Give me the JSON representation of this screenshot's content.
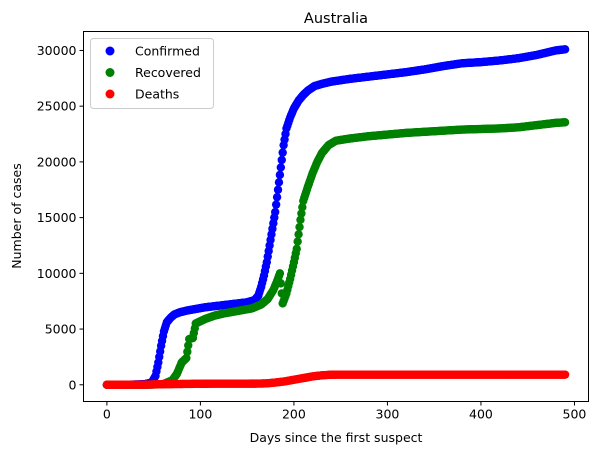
{
  "chart_data": {
    "type": "scatter",
    "title": "Australia",
    "xlabel": "Days since the first suspect",
    "ylabel": "Number of cases",
    "xlim": [
      -25,
      515
    ],
    "ylim": [
      -1500,
      31700
    ],
    "x_ticks": [
      0,
      100,
      200,
      300,
      400,
      500
    ],
    "y_ticks": [
      0,
      5000,
      10000,
      15000,
      20000,
      25000,
      30000
    ],
    "grid": false,
    "legend_position": "top-left",
    "series": [
      {
        "name": "Confirmed",
        "color": "#0000ff",
        "points": [
          [
            0,
            0
          ],
          [
            20,
            0
          ],
          [
            40,
            50
          ],
          [
            48,
            200
          ],
          [
            52,
            800
          ],
          [
            55,
            2000
          ],
          [
            58,
            3500
          ],
          [
            61,
            4800
          ],
          [
            64,
            5600
          ],
          [
            68,
            6000
          ],
          [
            72,
            6300
          ],
          [
            78,
            6500
          ],
          [
            85,
            6650
          ],
          [
            95,
            6800
          ],
          [
            105,
            6950
          ],
          [
            120,
            7100
          ],
          [
            135,
            7250
          ],
          [
            150,
            7400
          ],
          [
            158,
            7600
          ],
          [
            162,
            8000
          ],
          [
            165,
            8800
          ],
          [
            168,
            9800
          ],
          [
            171,
            11000
          ],
          [
            174,
            12500
          ],
          [
            177,
            14000
          ],
          [
            180,
            15500
          ],
          [
            183,
            17500
          ],
          [
            186,
            19500
          ],
          [
            189,
            21500
          ],
          [
            192,
            23000
          ],
          [
            196,
            24000
          ],
          [
            200,
            24800
          ],
          [
            205,
            25500
          ],
          [
            210,
            26000
          ],
          [
            215,
            26400
          ],
          [
            222,
            26800
          ],
          [
            230,
            27000
          ],
          [
            240,
            27200
          ],
          [
            260,
            27450
          ],
          [
            280,
            27650
          ],
          [
            300,
            27850
          ],
          [
            320,
            28050
          ],
          [
            340,
            28300
          ],
          [
            360,
            28600
          ],
          [
            380,
            28850
          ],
          [
            400,
            28950
          ],
          [
            420,
            29100
          ],
          [
            440,
            29300
          ],
          [
            460,
            29600
          ],
          [
            470,
            29800
          ],
          [
            480,
            30000
          ],
          [
            490,
            30100
          ]
        ]
      },
      {
        "name": "Recovered",
        "color": "#008000",
        "points": [
          [
            0,
            0
          ],
          [
            40,
            0
          ],
          [
            60,
            50
          ],
          [
            70,
            400
          ],
          [
            75,
            1000
          ],
          [
            80,
            2000
          ],
          [
            85,
            2400
          ],
          [
            88,
            4100
          ],
          [
            92,
            4200
          ],
          [
            95,
            5500
          ],
          [
            105,
            5900
          ],
          [
            115,
            6200
          ],
          [
            125,
            6400
          ],
          [
            135,
            6550
          ],
          [
            145,
            6700
          ],
          [
            155,
            6850
          ],
          [
            165,
            7200
          ],
          [
            172,
            7700
          ],
          [
            178,
            8500
          ],
          [
            182,
            9300
          ],
          [
            185,
            10000
          ],
          [
            188,
            7300
          ],
          [
            192,
            8200
          ],
          [
            196,
            9500
          ],
          [
            200,
            11000
          ],
          [
            203,
            12200
          ],
          [
            207,
            14800
          ],
          [
            210,
            16500
          ],
          [
            215,
            17800
          ],
          [
            220,
            19000
          ],
          [
            225,
            20000
          ],
          [
            230,
            20800
          ],
          [
            237,
            21500
          ],
          [
            245,
            21900
          ],
          [
            260,
            22100
          ],
          [
            280,
            22300
          ],
          [
            300,
            22450
          ],
          [
            320,
            22600
          ],
          [
            340,
            22700
          ],
          [
            360,
            22800
          ],
          [
            380,
            22900
          ],
          [
            400,
            22950
          ],
          [
            420,
            23000
          ],
          [
            440,
            23100
          ],
          [
            460,
            23300
          ],
          [
            480,
            23500
          ],
          [
            490,
            23550
          ]
        ]
      },
      {
        "name": "Deaths",
        "color": "#ff0000",
        "points": [
          [
            0,
            0
          ],
          [
            40,
            10
          ],
          [
            60,
            50
          ],
          [
            80,
            70
          ],
          [
            100,
            90
          ],
          [
            120,
            100
          ],
          [
            140,
            100
          ],
          [
            160,
            105
          ],
          [
            170,
            120
          ],
          [
            180,
            200
          ],
          [
            190,
            300
          ],
          [
            200,
            450
          ],
          [
            210,
            600
          ],
          [
            220,
            750
          ],
          [
            230,
            850
          ],
          [
            240,
            900
          ],
          [
            260,
            910
          ],
          [
            300,
            910
          ],
          [
            340,
            910
          ],
          [
            380,
            910
          ],
          [
            420,
            910
          ],
          [
            460,
            910
          ],
          [
            490,
            910
          ]
        ]
      }
    ]
  }
}
